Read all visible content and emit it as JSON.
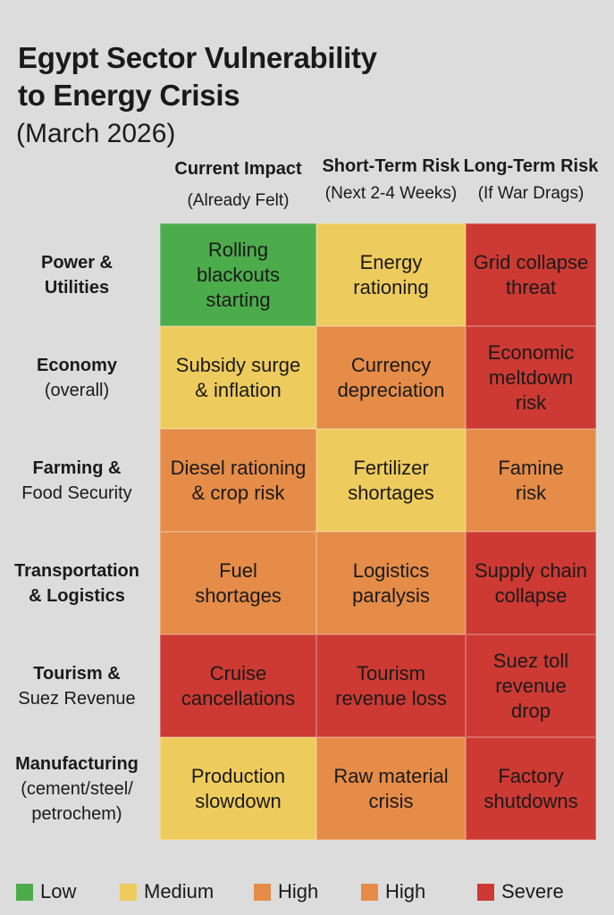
{
  "chart_data": {
    "type": "heatmap",
    "title": "Egypt Sector Vulnerability to Energy Crisis",
    "subtitle": "(March 2026)",
    "columns": [
      {
        "name": "Current Impact",
        "sub": "(Already Felt)"
      },
      {
        "name": "Short-Term Risk",
        "sub": "(Next 2-4 Weeks)"
      },
      {
        "name": "Long-Term Risk",
        "sub": "(If War Drags)"
      }
    ],
    "rows": [
      {
        "name": "Power &\nUtilities",
        "sub": ""
      },
      {
        "name": "Economy",
        "sub": "(overall)"
      },
      {
        "name": "Farming &",
        "sub": "Food Security"
      },
      {
        "name": "Transportation\n& Logistics",
        "sub": ""
      },
      {
        "name": "Tourism &",
        "sub": "Suez Revenue"
      },
      {
        "name": "Manufacturing",
        "sub": "(cement/steel/\npetrochem)"
      }
    ],
    "cells": [
      [
        {
          "text": "Rolling\nblackouts\nstarting",
          "level": "Low"
        },
        {
          "text": "Energy\nrationing",
          "level": "Medium"
        },
        {
          "text": "Grid collapse\nthreat",
          "level": "Severe"
        }
      ],
      [
        {
          "text": "Subsidy surge\n& inflation",
          "level": "Medium"
        },
        {
          "text": "Currency\ndepreciation",
          "level": "High"
        },
        {
          "text": "Economic\nmeltdown\nrisk",
          "level": "Severe"
        }
      ],
      [
        {
          "text": "Diesel rationing\n& crop risk",
          "level": "High"
        },
        {
          "text": "Fertilizer\nshortages",
          "level": "Medium"
        },
        {
          "text": "Famine\nrisk",
          "level": "High"
        }
      ],
      [
        {
          "text": "Fuel\nshortages",
          "level": "High"
        },
        {
          "text": "Logistics\nparalysis",
          "level": "High"
        },
        {
          "text": "Supply chain\ncollapse",
          "level": "Severe"
        }
      ],
      [
        {
          "text": "Cruise\ncancellations",
          "level": "Severe"
        },
        {
          "text": "Tourism\nrevenue loss",
          "level": "Severe"
        },
        {
          "text": "Suez toll\nrevenue\ndrop",
          "level": "Severe"
        }
      ],
      [
        {
          "text": "Production\nslowdown",
          "level": "Medium"
        },
        {
          "text": "Raw material\ncrisis",
          "level": "High"
        },
        {
          "text": "Factory\nshutdowns",
          "level": "Severe"
        }
      ]
    ],
    "legend": [
      {
        "label": "Low",
        "color": "#4cac4c"
      },
      {
        "label": "Medium",
        "color": "#eecb5d"
      },
      {
        "label": "High",
        "color": "#e58c48"
      },
      {
        "label": "High",
        "color": "#e58c48"
      },
      {
        "label": "Severe",
        "color": "#cc3a33"
      }
    ],
    "level_colors": {
      "Low": "#4cac4c",
      "Medium": "#eecb5d",
      "High": "#e58c48",
      "Severe": "#cc3a33"
    },
    "legend_placement": "bottom"
  }
}
